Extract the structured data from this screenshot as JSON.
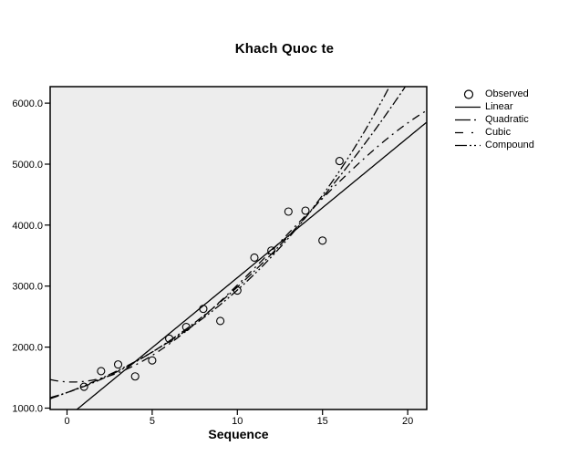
{
  "title": "Khach Quoc te",
  "chart_data": {
    "type": "scatter",
    "title": "Khach Quoc te",
    "xlabel": "Sequence",
    "ylabel": "",
    "grid": false,
    "legend_position": "right",
    "legend": [
      "Observed",
      "Linear",
      "Quadratic",
      "Cubic",
      "Compound"
    ],
    "xlim": [
      -0.99,
      21.12
    ],
    "ylim": [
      978,
      6270
    ],
    "x_ticks": {
      "values": [
        0,
        5,
        10,
        15,
        20
      ],
      "labels": [
        "0",
        "5",
        "10",
        "15",
        "20"
      ]
    },
    "y_ticks": {
      "values": [
        1000,
        2000,
        3000,
        4000,
        5000,
        6000
      ],
      "labels": [
        "1000.0",
        "2000.0",
        "3000.0",
        "4000.0",
        "5000.0",
        "6000.0"
      ]
    },
    "observed": {
      "x": [
        1,
        2,
        3,
        4,
        5,
        6,
        7,
        8,
        9,
        10,
        11,
        12,
        13,
        14,
        15,
        16
      ],
      "y": [
        1351,
        1607,
        1716,
        1520,
        1782,
        2140,
        2330,
        2628,
        2429,
        2928,
        3468,
        3583,
        4222,
        4237,
        3747,
        5050
      ]
    },
    "fits": [
      {
        "name": "Linear",
        "model": "polynomial",
        "coefficients": [
          845.3,
          229.31
        ]
      },
      {
        "name": "Quadratic",
        "model": "polynomial",
        "coefficients": [
          1255.8,
          92.36,
          8.06
        ]
      },
      {
        "name": "Cubic",
        "model": "polynomial",
        "coefficients": [
          1430.4,
          -15.03,
          23.38,
          -0.601
        ]
      },
      {
        "name": "Compound",
        "model": "exponential",
        "coefficients": [
          1255,
          1.0887
        ]
      }
    ]
  },
  "colors": {
    "page_background": "#ffffff",
    "plot_background": "#ededed",
    "frame": "#000000",
    "line": "#000000",
    "text": "#000000"
  }
}
